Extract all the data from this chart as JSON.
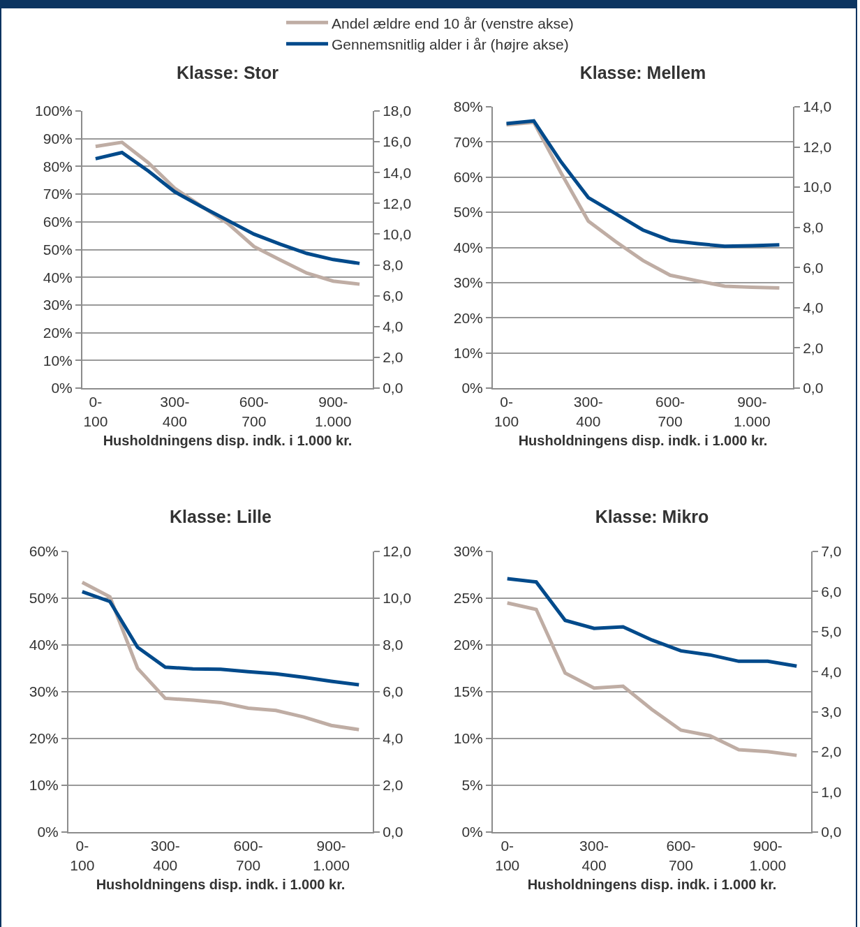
{
  "chart_data": [
    {
      "type": "line",
      "title": "Klasse: Stor",
      "xlabel": "Husholdningens disp. indk. i 1.000 kr.",
      "categories": [
        "0-100",
        null,
        null,
        "300-400",
        null,
        null,
        "600-700",
        null,
        null,
        "900-1.000",
        null
      ],
      "legend": "top",
      "grid": "y",
      "series": [
        {
          "name": "Andel ældre end 10 år (venstre akse)",
          "color": "#bfada4",
          "values": [
            87.2,
            88.7,
            81.3,
            72.1,
            65.7,
            59.5,
            51.1,
            46.2,
            41.5,
            38.6,
            37.5
          ]
        },
        {
          "name": "Gennemsnitlig alder i år (højre akse)",
          "color": "#004a8b",
          "axis": "y2",
          "values": [
            14.9,
            15.3,
            14.1,
            12.75,
            11.8,
            10.9,
            10.0,
            9.35,
            8.75,
            8.35,
            8.1
          ]
        }
      ],
      "ylim": [
        0,
        100
      ],
      "yticks": [
        {
          "value": 0,
          "label": "0%"
        },
        {
          "value": 10,
          "label": "10%"
        },
        {
          "value": 20,
          "label": "20%"
        },
        {
          "value": 30,
          "label": "30%"
        },
        {
          "value": 40,
          "label": "40%"
        },
        {
          "value": 50,
          "label": "50%"
        },
        {
          "value": 60,
          "label": "60%"
        },
        {
          "value": 70,
          "label": "70%"
        },
        {
          "value": 80,
          "label": "80%"
        },
        {
          "value": 90,
          "label": "90%"
        },
        {
          "value": 100,
          "label": "100%"
        }
      ],
      "y2lim": [
        0,
        18
      ],
      "y2ticks": [
        {
          "value": 0,
          "label": "0,0"
        },
        {
          "value": 2,
          "label": "2,0"
        },
        {
          "value": 4,
          "label": "4,0"
        },
        {
          "value": 6,
          "label": "6,0"
        },
        {
          "value": 8,
          "label": "8,0"
        },
        {
          "value": 10,
          "label": "10,0"
        },
        {
          "value": 12,
          "label": "12,0"
        },
        {
          "value": 14,
          "label": "14,0"
        },
        {
          "value": 16,
          "label": "16,0"
        },
        {
          "value": 18,
          "label": "18,0"
        }
      ]
    },
    {
      "type": "line",
      "title": "Klasse: Mellem",
      "xlabel": "Husholdningens disp. indk. i 1.000 kr.",
      "categories": [
        "0-100",
        null,
        null,
        "300-400",
        null,
        null,
        "600-700",
        null,
        null,
        "900-1.000",
        null
      ],
      "grid": "y",
      "series": [
        {
          "color": "#bfada4",
          "values": [
            74.9,
            75.6,
            61.2,
            47.5,
            41.7,
            36.3,
            32.1,
            30.5,
            29.0,
            28.7,
            28.5
          ]
        },
        {
          "color": "#004a8b",
          "axis": "y2",
          "values": [
            13.17,
            13.3,
            11.26,
            9.48,
            8.68,
            7.87,
            7.35,
            7.19,
            7.06,
            7.09,
            7.13
          ]
        }
      ],
      "ylim": [
        0,
        80
      ],
      "yticks": [
        {
          "value": 0,
          "label": "0%"
        },
        {
          "value": 10,
          "label": "10%"
        },
        {
          "value": 20,
          "label": "20%"
        },
        {
          "value": 30,
          "label": "30%"
        },
        {
          "value": 40,
          "label": "40%"
        },
        {
          "value": 50,
          "label": "50%"
        },
        {
          "value": 60,
          "label": "60%"
        },
        {
          "value": 70,
          "label": "70%"
        },
        {
          "value": 80,
          "label": "80%"
        }
      ],
      "y2lim": [
        0,
        14
      ],
      "y2ticks": [
        {
          "value": 0,
          "label": "0,0"
        },
        {
          "value": 2,
          "label": "2,0"
        },
        {
          "value": 4,
          "label": "4,0"
        },
        {
          "value": 6,
          "label": "6,0"
        },
        {
          "value": 8,
          "label": "8,0"
        },
        {
          "value": 10,
          "label": "10,0"
        },
        {
          "value": 12,
          "label": "12,0"
        },
        {
          "value": 14,
          "label": "14,0"
        }
      ]
    },
    {
      "type": "line",
      "title": "Klasse: Lille",
      "xlabel": "Husholdningens disp. indk. i 1.000 kr.",
      "categories": [
        "0-100",
        null,
        null,
        "300-400",
        null,
        null,
        "600-700",
        null,
        null,
        "900-1.000",
        null
      ],
      "grid": "y",
      "series": [
        {
          "color": "#bfada4",
          "values": [
            53.4,
            50.3,
            35.0,
            28.6,
            28.2,
            27.7,
            26.5,
            26.0,
            24.6,
            22.8,
            21.9
          ]
        },
        {
          "color": "#004a8b",
          "axis": "y2",
          "values": [
            10.28,
            9.86,
            7.9,
            7.05,
            6.98,
            6.96,
            6.86,
            6.77,
            6.62,
            6.45,
            6.3
          ]
        }
      ],
      "ylim": [
        0,
        60
      ],
      "yticks": [
        {
          "value": 0,
          "label": "0%"
        },
        {
          "value": 10,
          "label": "10%"
        },
        {
          "value": 20,
          "label": "20%"
        },
        {
          "value": 30,
          "label": "30%"
        },
        {
          "value": 40,
          "label": "40%"
        },
        {
          "value": 50,
          "label": "50%"
        },
        {
          "value": 60,
          "label": "60%"
        }
      ],
      "y2lim": [
        0,
        12
      ],
      "y2ticks": [
        {
          "value": 0,
          "label": "0,0"
        },
        {
          "value": 2,
          "label": "2,0"
        },
        {
          "value": 4,
          "label": "4,0"
        },
        {
          "value": 6,
          "label": "6,0"
        },
        {
          "value": 8,
          "label": "8,0"
        },
        {
          "value": 10,
          "label": "10,0"
        },
        {
          "value": 12,
          "label": "12,0"
        }
      ]
    },
    {
      "type": "line",
      "title": "Klasse: Mikro",
      "xlabel": "Husholdningens disp. indk. i 1.000 kr.",
      "categories": [
        "0-100",
        null,
        null,
        "300-400",
        null,
        null,
        "600-700",
        null,
        null,
        "900-1.000",
        null
      ],
      "grid": "y",
      "series": [
        {
          "color": "#bfada4",
          "values": [
            24.5,
            23.8,
            17.0,
            15.4,
            15.6,
            13.1,
            10.9,
            10.3,
            8.8,
            8.6,
            8.2
          ]
        },
        {
          "color": "#004a8b",
          "axis": "y2",
          "values": [
            6.32,
            6.24,
            5.28,
            5.08,
            5.12,
            4.79,
            4.52,
            4.42,
            4.26,
            4.26,
            4.14
          ]
        }
      ],
      "ylim": [
        0,
        30
      ],
      "yticks": [
        {
          "value": 0,
          "label": "0%"
        },
        {
          "value": 5,
          "label": "5%"
        },
        {
          "value": 10,
          "label": "10%"
        },
        {
          "value": 15,
          "label": "15%"
        },
        {
          "value": 20,
          "label": "20%"
        },
        {
          "value": 25,
          "label": "25%"
        },
        {
          "value": 30,
          "label": "30%"
        }
      ],
      "y2lim": [
        0,
        7
      ],
      "y2ticks": [
        {
          "value": 0,
          "label": "0,0"
        },
        {
          "value": 1,
          "label": "1,0"
        },
        {
          "value": 2,
          "label": "2,0"
        },
        {
          "value": 3,
          "label": "3,0"
        },
        {
          "value": 4,
          "label": "4,0"
        },
        {
          "value": 5,
          "label": "5,0"
        },
        {
          "value": 6,
          "label": "6,0"
        },
        {
          "value": 7,
          "label": "7,0"
        }
      ]
    }
  ]
}
